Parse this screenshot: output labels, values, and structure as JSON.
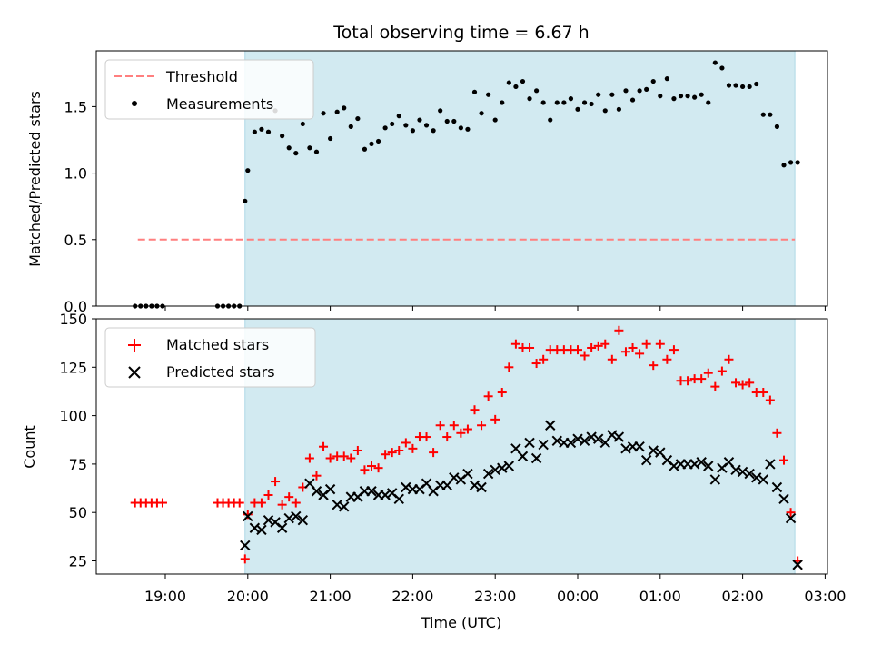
{
  "chart_data": [
    {
      "type": "scatter",
      "title": "Total observing time = 6.67 h",
      "xlabel": "",
      "ylabel": "Matched/Predicted stars",
      "ylim": [
        0,
        1.9
      ],
      "yticks": [
        "0.0",
        "0.5",
        "1.0",
        "1.5"
      ],
      "shaded_region": {
        "start": "19:58",
        "end": "02:38",
        "color": "#add8e6"
      },
      "threshold": {
        "name": "Threshold",
        "value": 0.5,
        "color": "#ff7f7f",
        "x_start": "18:40",
        "x_end": "02:38"
      },
      "legend": [
        "Threshold",
        "Measurements"
      ],
      "legend_position": "upper-left",
      "series": [
        {
          "name": "Measurements",
          "color": "#000000",
          "x": [
            "18:38",
            "18:42",
            "18:46",
            "18:50",
            "18:54",
            "18:58",
            "19:38",
            "19:42",
            "19:46",
            "19:50",
            "19:54",
            "19:58",
            "20:00",
            "20:05",
            "20:10",
            "20:15",
            "20:20",
            "20:25",
            "20:30",
            "20:35",
            "20:40",
            "20:45",
            "20:50",
            "20:55",
            "21:00",
            "21:05",
            "21:10",
            "21:15",
            "21:20",
            "21:25",
            "21:30",
            "21:35",
            "21:40",
            "21:45",
            "21:50",
            "21:55",
            "22:00",
            "22:05",
            "22:10",
            "22:15",
            "22:20",
            "22:25",
            "22:30",
            "22:35",
            "22:40",
            "22:45",
            "22:50",
            "22:55",
            "23:00",
            "23:05",
            "23:10",
            "23:15",
            "23:20",
            "23:25",
            "23:30",
            "23:35",
            "23:40",
            "23:45",
            "23:50",
            "23:55",
            "00:00",
            "00:05",
            "00:10",
            "00:15",
            "00:20",
            "00:25",
            "00:30",
            "00:35",
            "00:40",
            "00:45",
            "00:50",
            "00:55",
            "01:00",
            "01:05",
            "01:10",
            "01:15",
            "01:20",
            "01:25",
            "01:30",
            "01:35",
            "01:40",
            "01:45",
            "01:50",
            "01:55",
            "02:00",
            "02:05",
            "02:10",
            "02:15",
            "02:20",
            "02:25",
            "02:30",
            "02:35",
            "02:40"
          ],
          "y": [
            0,
            0,
            0,
            0,
            0,
            0,
            0,
            0,
            0,
            0,
            0,
            0.79,
            1.02,
            1.31,
            1.33,
            1.31,
            1.47,
            1.28,
            1.19,
            1.15,
            1.37,
            1.19,
            1.16,
            1.45,
            1.26,
            1.46,
            1.49,
            1.35,
            1.41,
            1.18,
            1.22,
            1.24,
            1.34,
            1.37,
            1.43,
            1.36,
            1.32,
            1.4,
            1.36,
            1.32,
            1.47,
            1.39,
            1.39,
            1.34,
            1.33,
            1.61,
            1.45,
            1.59,
            1.4,
            1.53,
            1.68,
            1.65,
            1.69,
            1.56,
            1.62,
            1.53,
            1.4,
            1.53,
            1.53,
            1.56,
            1.48,
            1.53,
            1.52,
            1.59,
            1.47,
            1.59,
            1.48,
            1.62,
            1.55,
            1.62,
            1.63,
            1.69,
            1.58,
            1.71,
            1.56,
            1.58,
            1.58,
            1.57,
            1.59,
            1.53,
            1.83,
            1.79,
            1.66,
            1.66,
            1.65,
            1.65,
            1.67,
            1.44,
            1.44,
            1.35,
            1.06,
            1.08,
            1.08
          ]
        }
      ]
    },
    {
      "type": "scatter",
      "title": "",
      "xlabel": "Time (UTC)",
      "ylabel": "Count",
      "ylim": [
        17,
        150
      ],
      "yticks": [
        "25",
        "50",
        "75",
        "100",
        "125",
        "150"
      ],
      "xticks": [
        "19:00",
        "20:00",
        "21:00",
        "22:00",
        "23:00",
        "00:00",
        "01:00",
        "02:00",
        "03:00"
      ],
      "shaded_region": {
        "start": "19:58",
        "end": "02:38",
        "color": "#add8e6"
      },
      "legend": [
        "Matched stars",
        "Predicted stars"
      ],
      "legend_position": "upper-left",
      "series": [
        {
          "name": "Matched stars",
          "marker": "plus",
          "color": "#ff0000",
          "x": [
            "18:38",
            "18:42",
            "18:46",
            "18:50",
            "18:54",
            "18:58",
            "19:38",
            "19:42",
            "19:46",
            "19:50",
            "19:54",
            "19:58",
            "20:00",
            "20:05",
            "20:10",
            "20:15",
            "20:20",
            "20:25",
            "20:30",
            "20:35",
            "20:40",
            "20:45",
            "20:50",
            "20:55",
            "21:00",
            "21:05",
            "21:10",
            "21:15",
            "21:20",
            "21:25",
            "21:30",
            "21:35",
            "21:40",
            "21:45",
            "21:50",
            "21:55",
            "22:00",
            "22:05",
            "22:10",
            "22:15",
            "22:20",
            "22:25",
            "22:30",
            "22:35",
            "22:40",
            "22:45",
            "22:50",
            "22:55",
            "23:00",
            "23:05",
            "23:10",
            "23:15",
            "23:20",
            "23:25",
            "23:30",
            "23:35",
            "23:40",
            "23:45",
            "23:50",
            "23:55",
            "00:00",
            "00:05",
            "00:10",
            "00:15",
            "00:20",
            "00:25",
            "00:30",
            "00:35",
            "00:40",
            "00:45",
            "00:50",
            "00:55",
            "01:00",
            "01:05",
            "01:10",
            "01:15",
            "01:20",
            "01:25",
            "01:30",
            "01:35",
            "01:40",
            "01:45",
            "01:50",
            "01:55",
            "02:00",
            "02:05",
            "02:10",
            "02:15",
            "02:20",
            "02:25",
            "02:30",
            "02:35",
            "02:40"
          ],
          "y": [
            55,
            55,
            55,
            55,
            55,
            55,
            55,
            55,
            55,
            55,
            55,
            26,
            49,
            55,
            55,
            59,
            66,
            54,
            58,
            55,
            63,
            78,
            69,
            84,
            78,
            79,
            79,
            78,
            82,
            72,
            74,
            73,
            80,
            81,
            82,
            86,
            83,
            89,
            89,
            81,
            95,
            89,
            95,
            91,
            93,
            103,
            95,
            110,
            98,
            112,
            125,
            137,
            135,
            135,
            127,
            129,
            134,
            134,
            134,
            134,
            134,
            131,
            135,
            136,
            137,
            129,
            144,
            133,
            135,
            132,
            137,
            126,
            137,
            129,
            134,
            118,
            118,
            119,
            119,
            122,
            115,
            123,
            129,
            117,
            116,
            117,
            112,
            112,
            108,
            91,
            77,
            50,
            25
          ]
        },
        {
          "name": "Predicted stars",
          "marker": "x",
          "color": "#000000",
          "x": [
            "19:58",
            "20:00",
            "20:05",
            "20:10",
            "20:15",
            "20:20",
            "20:25",
            "20:30",
            "20:35",
            "20:40",
            "20:45",
            "20:50",
            "20:55",
            "21:00",
            "21:05",
            "21:10",
            "21:15",
            "21:20",
            "21:25",
            "21:30",
            "21:35",
            "21:40",
            "21:45",
            "21:50",
            "21:55",
            "22:00",
            "22:05",
            "22:10",
            "22:15",
            "22:20",
            "22:25",
            "22:30",
            "22:35",
            "22:40",
            "22:45",
            "22:50",
            "22:55",
            "23:00",
            "23:05",
            "23:10",
            "23:15",
            "23:20",
            "23:25",
            "23:30",
            "23:35",
            "23:40",
            "23:45",
            "23:50",
            "23:55",
            "00:00",
            "00:05",
            "00:10",
            "00:15",
            "00:20",
            "00:25",
            "00:30",
            "00:35",
            "00:40",
            "00:45",
            "00:50",
            "00:55",
            "01:00",
            "01:05",
            "01:10",
            "01:15",
            "01:20",
            "01:25",
            "01:30",
            "01:35",
            "01:40",
            "01:45",
            "01:50",
            "01:55",
            "02:00",
            "02:05",
            "02:10",
            "02:15",
            "02:20",
            "02:25",
            "02:30",
            "02:35",
            "02:40"
          ],
          "y": [
            33,
            48,
            42,
            41,
            46,
            45,
            42,
            47,
            48,
            46,
            65,
            61,
            59,
            62,
            54,
            53,
            58,
            58,
            61,
            61,
            59,
            59,
            60,
            57,
            63,
            62,
            62,
            65,
            61,
            64,
            64,
            68,
            67,
            70,
            64,
            63,
            70,
            72,
            73,
            74,
            83,
            79,
            86,
            78,
            85,
            95,
            87,
            86,
            86,
            88,
            87,
            89,
            88,
            86,
            90,
            89,
            83,
            84,
            84,
            77,
            82,
            81,
            77,
            74,
            75,
            75,
            75,
            76,
            74,
            67,
            73,
            76,
            72,
            71,
            70,
            68,
            67,
            75,
            63,
            57,
            47,
            23
          ]
        }
      ]
    }
  ]
}
